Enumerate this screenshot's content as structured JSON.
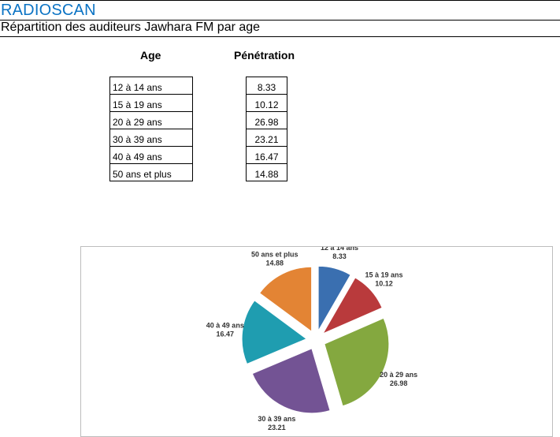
{
  "header": {
    "brand": "RADIOSCAN",
    "subtitle": "Répartition des auditeurs Jawhara FM par age"
  },
  "table": {
    "col_age": "Age",
    "col_pen": "Pénétration",
    "rows": [
      {
        "age": "12 à 14 ans",
        "value": "8.33"
      },
      {
        "age": "15 à 19 ans",
        "value": "10.12"
      },
      {
        "age": "20 à 29 ans",
        "value": "26.98"
      },
      {
        "age": "30 à 39 ans",
        "value": "23.21"
      },
      {
        "age": "40 à 49 ans",
        "value": "16.47"
      },
      {
        "age": "50 ans et plus",
        "value": "14.88"
      }
    ]
  },
  "chart_data": {
    "type": "pie",
    "exploded": true,
    "categories": [
      "12 à 14 ans",
      "15 à 19 ans",
      "20 à 29 ans",
      "30 à 39 ans",
      "40 à 49 ans",
      "50 ans et plus"
    ],
    "values": [
      8.33,
      10.12,
      26.98,
      23.21,
      16.47,
      14.88
    ],
    "data_labels": [
      "8.33",
      "10.12",
      "26.98",
      "23.21",
      "16.47",
      "14.88"
    ],
    "colors": [
      "#3a6fb0",
      "#b93a3c",
      "#84a83f",
      "#735394",
      "#1f9db0",
      "#e38434"
    ]
  }
}
